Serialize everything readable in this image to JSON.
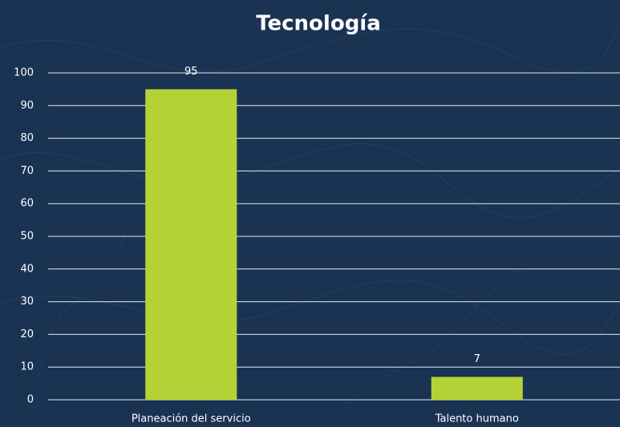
{
  "chart_data": {
    "type": "bar",
    "title": "Tecnología",
    "categories": [
      "Planeación del servicio",
      "Talento humano"
    ],
    "values": [
      95,
      7
    ],
    "color": "#b4d235",
    "ylim": [
      0,
      100
    ],
    "yticks": [
      0,
      10,
      20,
      30,
      40,
      50,
      60,
      70,
      80,
      90,
      100
    ],
    "grid": true
  }
}
